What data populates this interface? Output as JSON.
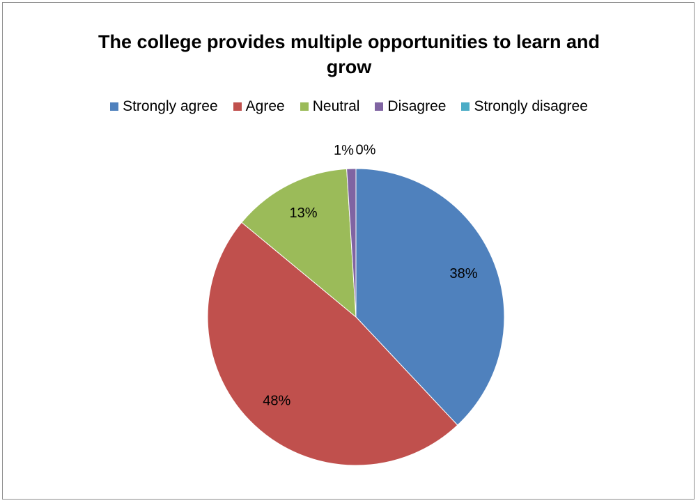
{
  "chart_data": {
    "type": "pie",
    "title": "The college provides multiple opportunities to learn and grow",
    "title_lines": [
      "The college provides multiple opportunities to learn and",
      "grow"
    ],
    "categories": [
      "Strongly agree",
      "Agree",
      "Neutral",
      "Disagree",
      "Strongly disagree"
    ],
    "values": [
      38,
      48,
      13,
      1,
      0
    ],
    "labels": [
      "38%",
      "48%",
      "13%",
      "1%",
      "0%"
    ],
    "colors": [
      "#4f81bd",
      "#c0504d",
      "#9bbb59",
      "#8064a2",
      "#4bacc6"
    ],
    "legend": "top",
    "grid": false
  }
}
